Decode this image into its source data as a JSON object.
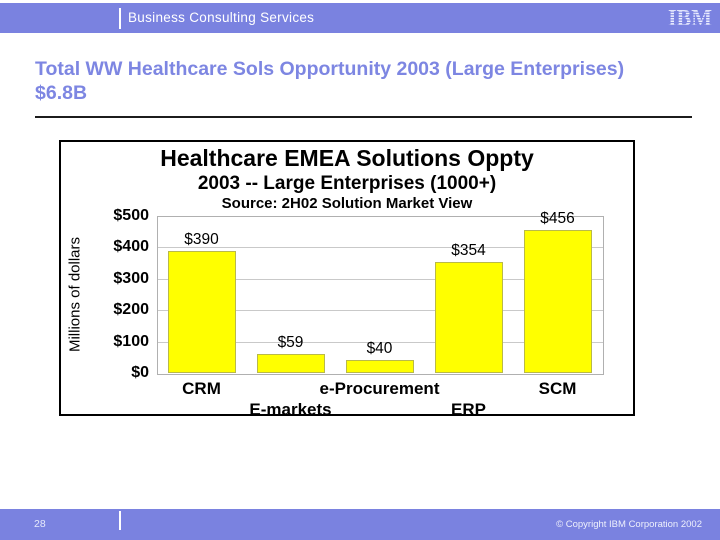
{
  "header": {
    "brand": "Business Consulting Services",
    "logo": "IBM"
  },
  "slide": {
    "title": "Total WW Healthcare Sols Opportunity 2003 (Large Enterprises) $6.8B"
  },
  "chart_data": {
    "type": "bar",
    "title": "Healthcare EMEA Solutions Oppty",
    "subtitle": "2003 -- Large Enterprises (1000+)",
    "source": "Source: 2H02 Solution Market View",
    "categories": [
      "CRM",
      "E-markets",
      "e-Procurement",
      "ERP",
      "SCM"
    ],
    "values": [
      390,
      59,
      40,
      354,
      456
    ],
    "value_labels": [
      "$390",
      "$59",
      "$40",
      "$354",
      "$456"
    ],
    "ylabel": "Millions of dollars",
    "xlabel": "",
    "ylim": [
      0,
      500
    ],
    "ytick_labels": [
      "$0",
      "$100",
      "$200",
      "$300",
      "$400",
      "$500"
    ],
    "grid": true,
    "legend": "none",
    "bar_color": "#FFFF00"
  },
  "footer": {
    "page_number": "28",
    "copyright": "© Copyright IBM Corporation 2002"
  },
  "colors": {
    "accent": "#7A82E0",
    "title_color": "#7D86E2",
    "bar_fill": "#FFFF00",
    "gridline": "#C9C9C9"
  }
}
